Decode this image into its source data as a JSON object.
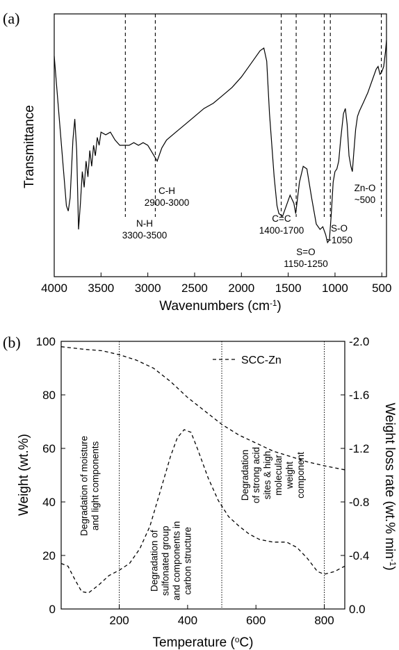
{
  "chart_data": [
    {
      "type": "line",
      "panel_label": "(a)",
      "xlabel": "Wavenumbers (cm",
      "xlabel_sup": "-1",
      "xlabel_end": ")",
      "ylabel": "Transmittance",
      "xlim": [
        4000,
        450
      ],
      "x_reversed": true,
      "xticks": [
        4000,
        3500,
        3000,
        2500,
        2000,
        1500,
        1000,
        500
      ],
      "y_axis_values": false,
      "series": [
        {
          "style": "solid",
          "points": [
            [
              4000,
              0.84
            ],
            [
              3950,
              0.62
            ],
            [
              3900,
              0.4
            ],
            [
              3870,
              0.27
            ],
            [
              3850,
              0.25
            ],
            [
              3830,
              0.3
            ],
            [
              3800,
              0.52
            ],
            [
              3780,
              0.6
            ],
            [
              3760,
              0.48
            ],
            [
              3740,
              0.18
            ],
            [
              3720,
              0.28
            ],
            [
              3700,
              0.4
            ],
            [
              3680,
              0.34
            ],
            [
              3660,
              0.44
            ],
            [
              3640,
              0.38
            ],
            [
              3620,
              0.48
            ],
            [
              3600,
              0.42
            ],
            [
              3580,
              0.5
            ],
            [
              3560,
              0.46
            ],
            [
              3540,
              0.53
            ],
            [
              3520,
              0.5
            ],
            [
              3500,
              0.55
            ],
            [
              3450,
              0.54
            ],
            [
              3400,
              0.55
            ],
            [
              3350,
              0.52
            ],
            [
              3300,
              0.5
            ],
            [
              3250,
              0.5
            ],
            [
              3200,
              0.5
            ],
            [
              3150,
              0.51
            ],
            [
              3100,
              0.5
            ],
            [
              3050,
              0.51
            ],
            [
              3000,
              0.5
            ],
            [
              2950,
              0.47
            ],
            [
              2900,
              0.44
            ],
            [
              2850,
              0.49
            ],
            [
              2800,
              0.52
            ],
            [
              2700,
              0.55
            ],
            [
              2600,
              0.58
            ],
            [
              2500,
              0.61
            ],
            [
              2400,
              0.64
            ],
            [
              2300,
              0.66
            ],
            [
              2200,
              0.69
            ],
            [
              2100,
              0.72
            ],
            [
              2000,
              0.76
            ],
            [
              1900,
              0.81
            ],
            [
              1800,
              0.86
            ],
            [
              1760,
              0.87
            ],
            [
              1730,
              0.82
            ],
            [
              1700,
              0.62
            ],
            [
              1650,
              0.38
            ],
            [
              1620,
              0.27
            ],
            [
              1600,
              0.24
            ],
            [
              1560,
              0.23
            ],
            [
              1520,
              0.27
            ],
            [
              1480,
              0.31
            ],
            [
              1440,
              0.28
            ],
            [
              1420,
              0.24
            ],
            [
              1380,
              0.36
            ],
            [
              1340,
              0.42
            ],
            [
              1300,
              0.41
            ],
            [
              1250,
              0.3
            ],
            [
              1200,
              0.2
            ],
            [
              1160,
              0.18
            ],
            [
              1130,
              0.19
            ],
            [
              1100,
              0.16
            ],
            [
              1080,
              0.13
            ],
            [
              1060,
              0.14
            ],
            [
              1040,
              0.24
            ],
            [
              1020,
              0.36
            ],
            [
              1000,
              0.4
            ],
            [
              980,
              0.41
            ],
            [
              960,
              0.44
            ],
            [
              940,
              0.52
            ],
            [
              910,
              0.62
            ],
            [
              890,
              0.64
            ],
            [
              870,
              0.58
            ],
            [
              850,
              0.46
            ],
            [
              830,
              0.42
            ],
            [
              815,
              0.4
            ],
            [
              800,
              0.47
            ],
            [
              780,
              0.56
            ],
            [
              760,
              0.61
            ],
            [
              740,
              0.63
            ],
            [
              700,
              0.66
            ],
            [
              650,
              0.7
            ],
            [
              600,
              0.75
            ],
            [
              560,
              0.79
            ],
            [
              540,
              0.8
            ],
            [
              520,
              0.77
            ],
            [
              500,
              0.78
            ],
            [
              480,
              0.8
            ],
            [
              460,
              0.86
            ],
            [
              450,
              0.9
            ]
          ]
        }
      ],
      "annotations": [
        {
          "x": 3240,
          "lines": [
            "N-H",
            "3300-3500"
          ]
        },
        {
          "x": 2920,
          "lines": [
            "C-H",
            "2900-3000"
          ]
        },
        {
          "x": 1575,
          "lines": [],
          "dashed_only": true
        },
        {
          "x": 1415,
          "lines": [
            "C=C",
            "1400-1700"
          ]
        },
        {
          "x": 1115,
          "lines": [
            "S=O",
            "1150-1250"
          ]
        },
        {
          "x": 1050,
          "lines": [
            "S-O",
            "~1050"
          ]
        },
        {
          "x": 505,
          "lines": [
            "Zn-O",
            "~500"
          ]
        }
      ]
    },
    {
      "type": "line",
      "panel_label": "(b)",
      "xlabel": "Temperature (",
      "xlabel_sup": "o",
      "xlabel_end": "C)",
      "ylabel": "Weight (wt.%)",
      "y2label": "Weight loss rate (wt.% min",
      "y2label_sup": "-1",
      "y2label_end": ")",
      "xlim": [
        30,
        860
      ],
      "ylim": [
        0,
        100
      ],
      "y2lim": [
        0.0,
        -2.0
      ],
      "xticks": [
        200,
        400,
        600,
        800
      ],
      "yticks": [
        0,
        20,
        40,
        60,
        80,
        100
      ],
      "y2ticks": [
        "0.0",
        "-0.4",
        "-0.8",
        "-1.2",
        "-1.6",
        "-2.0"
      ],
      "legend": {
        "position": "top-right",
        "entries": [
          {
            "name": "SCC-Zn",
            "style": "dashed"
          }
        ]
      },
      "vlines": [
        200,
        500,
        800
      ],
      "series": [
        {
          "name": "SCC-Zn",
          "axis": "left",
          "style": "dashed",
          "points": [
            [
              30,
              98
            ],
            [
              100,
              97
            ],
            [
              150,
              96.5
            ],
            [
              200,
              95
            ],
            [
              250,
              93
            ],
            [
              300,
              90
            ],
            [
              350,
              85
            ],
            [
              400,
              79
            ],
            [
              450,
              74
            ],
            [
              500,
              69
            ],
            [
              550,
              65
            ],
            [
              600,
              62
            ],
            [
              650,
              59
            ],
            [
              700,
              57
            ],
            [
              750,
              55
            ],
            [
              800,
              53.5
            ],
            [
              860,
              52
            ]
          ]
        },
        {
          "axis": "right",
          "style": "dashed",
          "points": [
            [
              30,
              -0.34
            ],
            [
              50,
              -0.32
            ],
            [
              70,
              -0.22
            ],
            [
              90,
              -0.13
            ],
            [
              110,
              -0.12
            ],
            [
              140,
              -0.18
            ],
            [
              170,
              -0.25
            ],
            [
              200,
              -0.29
            ],
            [
              230,
              -0.34
            ],
            [
              260,
              -0.45
            ],
            [
              290,
              -0.62
            ],
            [
              320,
              -0.88
            ],
            [
              350,
              -1.14
            ],
            [
              370,
              -1.28
            ],
            [
              390,
              -1.34
            ],
            [
              410,
              -1.32
            ],
            [
              430,
              -1.19
            ],
            [
              460,
              -0.98
            ],
            [
              490,
              -0.81
            ],
            [
              520,
              -0.69
            ],
            [
              550,
              -0.62
            ],
            [
              580,
              -0.56
            ],
            [
              610,
              -0.52
            ],
            [
              650,
              -0.5
            ],
            [
              690,
              -0.5
            ],
            [
              720,
              -0.46
            ],
            [
              750,
              -0.38
            ],
            [
              780,
              -0.28
            ],
            [
              800,
              -0.26
            ],
            [
              830,
              -0.28
            ],
            [
              860,
              -0.32
            ]
          ]
        }
      ],
      "region_labels": [
        {
          "lines": [
            "Degradation of moisture",
            "and light components"
          ],
          "x": 112,
          "y": 46
        },
        {
          "lines": [
            "Degradation of",
            "sulfonated group",
            "and components in",
            "carbon structure"
          ],
          "x": 350,
          "y": 18
        },
        {
          "lines": [
            "Degradation",
            "of strong acid",
            "sites & high",
            "molecular",
            "weight",
            "component"
          ],
          "x": 648,
          "y": 50
        }
      ]
    }
  ]
}
